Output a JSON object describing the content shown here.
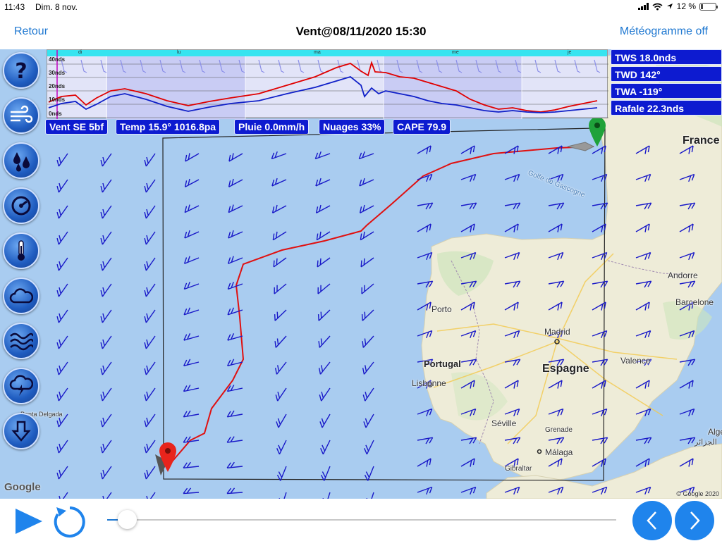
{
  "status_bar": {
    "time": "11:43",
    "date": "Dim. 8 nov.",
    "battery": "12 %"
  },
  "nav": {
    "back": "Retour",
    "title": "Vent@08/11/2020 15:30",
    "meteogram_toggle": "Météogramme off"
  },
  "meteogram": {
    "days": [
      "di",
      "lu",
      "ma",
      "me",
      "je"
    ],
    "y_labels": [
      "40nds",
      "30nds",
      "20nds",
      "10nds",
      "0nds"
    ],
    "colors": {
      "gust": "#e00000",
      "wind": "#1020c8",
      "header": "#36e4f0"
    }
  },
  "summary": {
    "wind": "Vent SE 5bf",
    "temp": "Temp 15.9° 1016.8pa",
    "rain": "Pluie 0.0mm/h",
    "clouds": "Nuages 33%",
    "cape": "CAPE 79.9"
  },
  "readouts": {
    "tws": "TWS 18.0nds",
    "twd": "TWD 142°",
    "twa": "TWA -119°",
    "gust": "Rafale 22.3nds"
  },
  "tools": [
    {
      "name": "help",
      "icon": "question-icon"
    },
    {
      "name": "wind",
      "icon": "wind-icon"
    },
    {
      "name": "rain",
      "icon": "rain-drops-icon"
    },
    {
      "name": "pressure",
      "icon": "gauge-icon"
    },
    {
      "name": "temperature",
      "icon": "thermometer-icon"
    },
    {
      "name": "clouds",
      "icon": "cloud-icon"
    },
    {
      "name": "waves",
      "icon": "waves-icon"
    },
    {
      "name": "storm",
      "icon": "storm-icon"
    },
    {
      "name": "download",
      "icon": "download-arrow-icon"
    }
  ],
  "map": {
    "places": {
      "france": "France",
      "golfe": "Golfe de Gascogne",
      "andorre": "Andorre",
      "barcelone": "Barcelone",
      "porto": "Porto",
      "madrid": "Madrid",
      "valence": "Valence",
      "portugal": "Portugal",
      "espagne": "Espagne",
      "lisbonne": "Lisbonne",
      "ponta": "Ponta Delgada",
      "seville": "Séville",
      "grenade": "Grenade",
      "malaga": "Málaga",
      "gibraltar": "Gibraltar",
      "alger": "Alge",
      "alger_ar": "الجزائر"
    },
    "attribution": "Google",
    "copyright": "© Google 2020",
    "colors": {
      "route": "#e01010",
      "barb": "#1818c8",
      "sea": "#a9ccf0",
      "land": "#eeecd8"
    }
  },
  "playback": {
    "position_fraction": 0.03
  }
}
